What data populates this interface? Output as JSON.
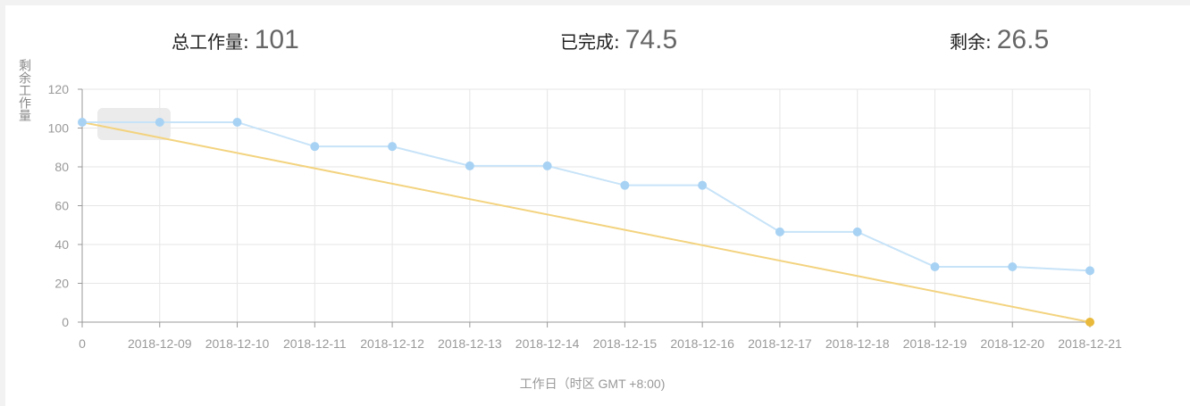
{
  "summary": {
    "total_label": "总工作量:",
    "total_value": "101",
    "done_label": "已完成:",
    "done_value": "74.5",
    "remaining_label": "剩余:",
    "remaining_value": "26.5"
  },
  "colors": {
    "actual_line": "#c7e3f8",
    "actual_point": "#a8d2f3",
    "ideal_line": "#f3d37f",
    "ideal_end_point": "#e8b93a",
    "grid": "#e6e6e6",
    "axis": "#999999",
    "tick_text": "#999999",
    "highlight_box": "#e8e8e8"
  },
  "chart_data": {
    "type": "line",
    "title": "",
    "xlabel": "工作日（时区 GMT +8:00)",
    "ylabel": "剩余工作量",
    "categories": [
      "0",
      "2018-12-09",
      "2018-12-10",
      "2018-12-11",
      "2018-12-12",
      "2018-12-13",
      "2018-12-14",
      "2018-12-15",
      "2018-12-16",
      "2018-12-17",
      "2018-12-18",
      "2018-12-19",
      "2018-12-20",
      "2018-12-21"
    ],
    "ylim": [
      0,
      120
    ],
    "yticks": [
      0,
      20,
      40,
      60,
      80,
      100,
      120
    ],
    "grid": true,
    "legend": "none",
    "series": [
      {
        "key": "actual",
        "values": [
          103,
          103,
          103,
          90.5,
          90.5,
          80.5,
          80.5,
          70.5,
          70.5,
          46.5,
          46.5,
          28.5,
          28.5,
          26.5
        ]
      },
      {
        "key": "ideal",
        "from": [
          0,
          103
        ],
        "to": [
          13,
          0
        ]
      }
    ]
  }
}
